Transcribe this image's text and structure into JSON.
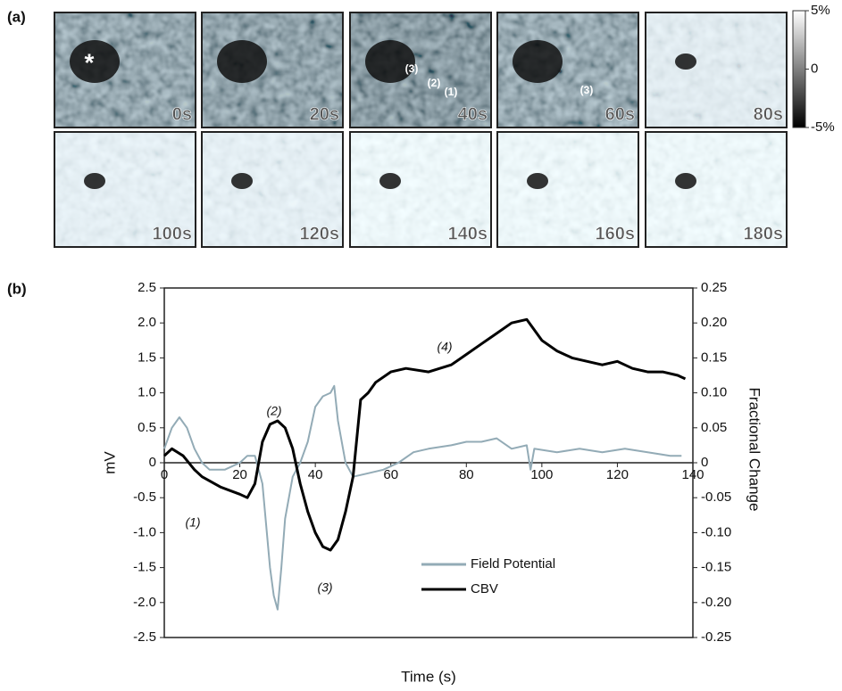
{
  "panel_a": {
    "label": "(a)",
    "frames": [
      "0s",
      "20s",
      "40s",
      "60s",
      "80s",
      "100s",
      "120s",
      "140s",
      "160s",
      "180s"
    ],
    "annotations": [
      "*",
      "(3)",
      "(2)",
      "(1)",
      "(3)"
    ],
    "colorbar": {
      "lim": [
        -5,
        5
      ],
      "ticks": [
        {
          "value": 5,
          "label": "5%"
        },
        0,
        {
          "value": -5,
          "label": "-5%"
        }
      ]
    }
  },
  "chart_data": {
    "type": "line",
    "panel_label": "(b)",
    "xlabel": "Time (s)",
    "ylabel": "mV",
    "y2label": "Fractional Change",
    "xlim": [
      0,
      140
    ],
    "xticks": [
      0,
      20,
      40,
      60,
      80,
      100,
      120,
      140
    ],
    "ylim": [
      -2.5,
      2.5
    ],
    "yticks": [
      -2.5,
      {
        "value": -2,
        "label": "-2.0"
      },
      -1.5,
      {
        "value": -1,
        "label": "-1.0"
      },
      -0.5,
      0,
      0.5,
      {
        "value": 1,
        "label": "1.0"
      },
      1.5,
      {
        "value": 2,
        "label": "2.0"
      },
      2.5
    ],
    "y2lim": [
      -0.25,
      0.25
    ],
    "y2ticks": [
      -0.25,
      {
        "value": -0.2,
        "label": "-0.20"
      },
      -0.15,
      {
        "value": -0.1,
        "label": "-0.10"
      },
      -0.05,
      0,
      0.05,
      {
        "value": 0.1,
        "label": "0.10"
      },
      0.15,
      {
        "value": 0.2,
        "label": "0.20"
      },
      0.25
    ],
    "series": [
      {
        "name": "Field Potential",
        "color": "#93abb6",
        "x": [
          0,
          2,
          4,
          6,
          8,
          10,
          12,
          16,
          20,
          22,
          24,
          26,
          28,
          29,
          30,
          31,
          32,
          34,
          36,
          38,
          40,
          42,
          44,
          45,
          46,
          48,
          50,
          54,
          58,
          62,
          66,
          70,
          76,
          80,
          84,
          88,
          92,
          96,
          97,
          98,
          104,
          110,
          116,
          122,
          128,
          134,
          137
        ],
        "values": [
          0.2,
          0.5,
          0.65,
          0.5,
          0.2,
          0,
          -0.1,
          -0.1,
          0,
          0.1,
          0.1,
          -0.3,
          -1.5,
          -1.9,
          -2.1,
          -1.5,
          -0.8,
          -0.2,
          0,
          0.3,
          0.8,
          0.95,
          1.0,
          1.1,
          0.6,
          0,
          -0.2,
          -0.15,
          -0.1,
          0,
          0.15,
          0.2,
          0.25,
          0.3,
          0.3,
          0.35,
          0.2,
          0.25,
          -0.1,
          0.2,
          0.15,
          0.2,
          0.15,
          0.2,
          0.15,
          0.1,
          0.1
        ]
      },
      {
        "name": "CBV",
        "color": "#000000",
        "axis": "y2",
        "x": [
          0,
          2,
          5,
          8,
          10,
          15,
          20,
          22,
          24,
          26,
          28,
          30,
          32,
          34,
          36,
          38,
          40,
          42,
          44,
          46,
          48,
          50,
          52,
          54,
          56,
          60,
          64,
          70,
          76,
          80,
          84,
          88,
          92,
          96,
          98,
          100,
          104,
          108,
          112,
          116,
          120,
          124,
          128,
          132,
          136,
          138
        ],
        "values": [
          0.01,
          0.02,
          0.01,
          -0.01,
          -0.02,
          -0.035,
          -0.045,
          -0.05,
          -0.03,
          0.03,
          0.055,
          0.06,
          0.05,
          0.02,
          -0.03,
          -0.07,
          -0.1,
          -0.12,
          -0.125,
          -0.11,
          -0.07,
          -0.02,
          0.09,
          0.1,
          0.115,
          0.13,
          0.135,
          0.13,
          0.14,
          0.155,
          0.17,
          0.185,
          0.2,
          0.205,
          0.19,
          0.175,
          0.16,
          0.15,
          0.145,
          0.14,
          0.145,
          0.135,
          0.13,
          0.13,
          0.125,
          0.12
        ]
      }
    ],
    "annotations": [
      "(1)",
      "(2)",
      "(3)",
      "(4)"
    ],
    "legend": "lower center"
  }
}
